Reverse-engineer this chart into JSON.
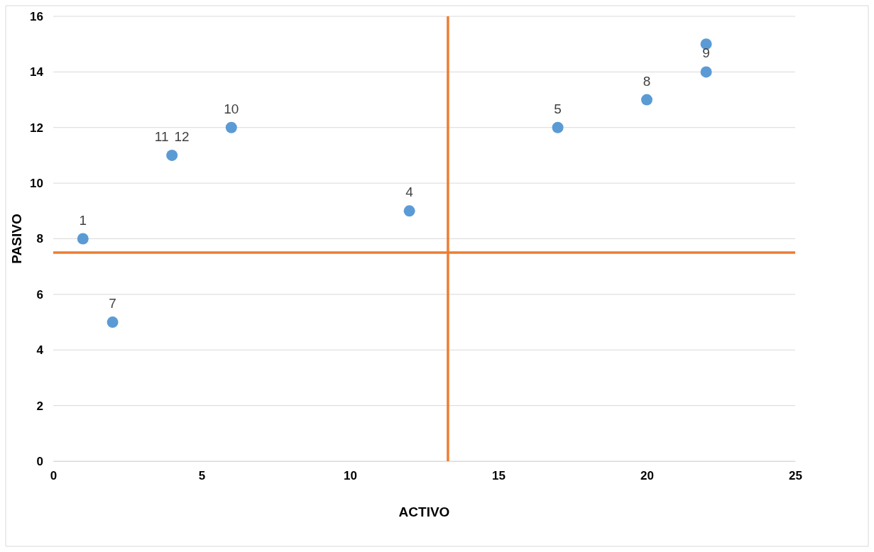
{
  "chart_data": {
    "type": "scatter",
    "xlabel": "ACTIVO",
    "ylabel": "PASIVO",
    "x": [
      1,
      2,
      4,
      6,
      12,
      17,
      20,
      22,
      22
    ],
    "series": [
      {
        "color": "#5b9bd5",
        "values": [
          8,
          5,
          11,
          12,
          9,
          12,
          13,
          14,
          15
        ]
      }
    ],
    "xlim": [
      0,
      25
    ],
    "ylim": [
      0,
      16
    ],
    "xticks": [
      0,
      5,
      10,
      15,
      20,
      25
    ],
    "yticks": [
      0,
      2,
      4,
      6,
      8,
      10,
      12,
      14,
      16
    ],
    "grid": "y",
    "marker": "circle",
    "ref_lines": [
      {
        "axis": "y",
        "value": 7.5,
        "color": "#ed7d31"
      },
      {
        "axis": "x",
        "value": 13.3,
        "color": "#ed7d31"
      }
    ],
    "annotations": [
      {
        "text": "1",
        "x": 1,
        "y": 8
      },
      {
        "text": "7",
        "x": 2,
        "y": 5
      },
      {
        "text": "11",
        "x": 4,
        "y": 11
      },
      {
        "text": "12",
        "x": 4,
        "y": 11
      },
      {
        "text": "10",
        "x": 6,
        "y": 12
      },
      {
        "text": "4",
        "x": 12,
        "y": 9
      },
      {
        "text": "5",
        "x": 17,
        "y": 12
      },
      {
        "text": "8",
        "x": 20,
        "y": 13
      },
      {
        "text": "9",
        "x": 22,
        "y": 14
      }
    ]
  }
}
